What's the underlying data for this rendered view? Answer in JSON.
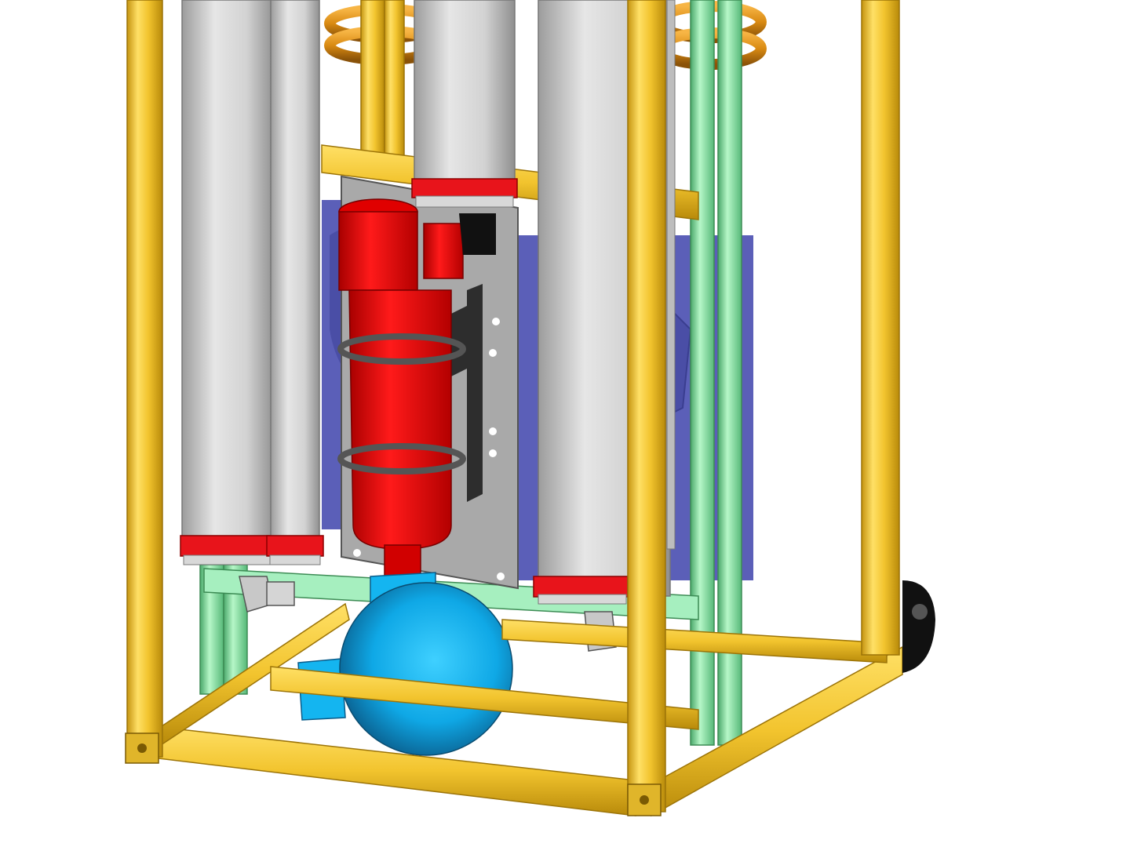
{
  "scene": {
    "kind": "cad-3d-render",
    "background": "#ffffff"
  },
  "colors": {
    "frame_profile": "#f2cd3a",
    "frame_profile_dark": "#c79a12",
    "inner_frame": "#8de6a9",
    "inner_frame_dark": "#52b877",
    "vessel_body": "#cfcfcf",
    "vessel_band": "#e8141b",
    "filter_housing": "#f20b0b",
    "mount_plate": "#a8a8a8",
    "fan_panel": "#5b5fb8",
    "copper_coil": "#d98a12",
    "tank_sphere": "#14b5f0",
    "caster": "#111111"
  },
  "parts": {
    "vessels": [
      {
        "name": "vessel-left-1"
      },
      {
        "name": "vessel-left-2"
      },
      {
        "name": "vessel-center"
      },
      {
        "name": "vessel-right"
      }
    ],
    "filter": {
      "name": "red-filter-housing"
    },
    "tank": {
      "name": "blue-spherical-tank"
    },
    "coil": {
      "name": "copper-coil"
    },
    "plate": {
      "name": "mounting-plate"
    }
  }
}
